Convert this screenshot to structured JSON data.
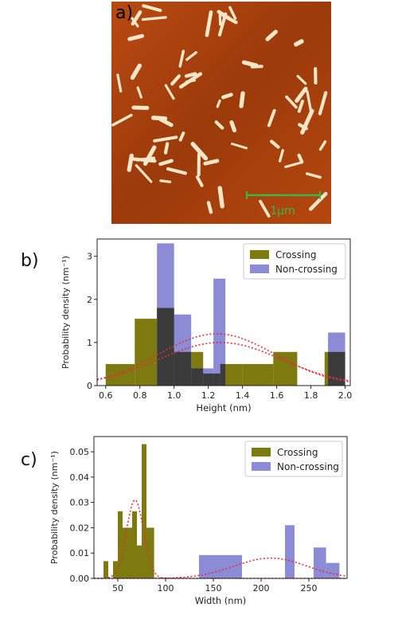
{
  "panels": {
    "a": {
      "label": "a)",
      "scale_bar_label": "1μm"
    },
    "b": {
      "label": "b)"
    },
    "c": {
      "label": "c)"
    }
  },
  "colors": {
    "crossing": "#7d7a10",
    "non_crossing": "#8c8cd6",
    "overlap": "#3b3b3b",
    "fit": "#e0303a",
    "afm_bg": "#a8420e",
    "afm_fiber": "#f5e6c8",
    "scale_bar": "#39b54a"
  },
  "chart_data": [
    {
      "type": "bar",
      "panel": "b",
      "xlabel": "Height (nm)",
      "ylabel": "Probability density (nm⁻¹)",
      "xlim": [
        0.55,
        2.03
      ],
      "ylim": [
        0,
        3.4
      ],
      "xticks": [
        "0.6",
        "0.8",
        "1.0",
        "1.2",
        "1.4",
        "1.6",
        "1.8",
        "2.0"
      ],
      "xtick_values": [
        0.6,
        0.8,
        1.0,
        1.2,
        1.4,
        1.6,
        1.8,
        2.0
      ],
      "yticks": [
        "0",
        "1",
        "2",
        "3"
      ],
      "ytick_values": [
        0,
        1,
        2,
        3
      ],
      "legend_position": "top-right",
      "series": [
        {
          "name": "Crossing",
          "bins": [
            [
              0.6,
              0.77,
              0.5
            ],
            [
              0.77,
              0.9,
              1.55
            ],
            [
              0.9,
              1.0,
              1.8
            ],
            [
              1.0,
              1.1,
              0.78
            ],
            [
              1.1,
              1.17,
              0.78
            ],
            [
              1.17,
              1.27,
              0.28
            ],
            [
              1.27,
              1.4,
              0.5
            ],
            [
              1.4,
              1.58,
              0.5
            ],
            [
              1.58,
              1.72,
              0.78
            ],
            [
              1.72,
              1.88,
              0
            ],
            [
              1.88,
              2.0,
              0.78
            ]
          ]
        },
        {
          "name": "Non-crossing",
          "bins": [
            [
              0.9,
              1.0,
              3.3
            ],
            [
              1.0,
              1.1,
              1.65
            ],
            [
              1.1,
              1.17,
              0.4
            ],
            [
              1.17,
              1.23,
              0.4
            ],
            [
              1.23,
              1.3,
              2.48
            ],
            [
              1.9,
              2.0,
              1.23
            ]
          ]
        }
      ],
      "fits": [
        {
          "series": "Crossing",
          "mean": 1.27,
          "sd": 0.36,
          "peak": 1.0
        },
        {
          "series": "Non-crossing",
          "mean": 1.25,
          "sd": 0.34,
          "peak": 1.2
        }
      ]
    },
    {
      "type": "bar",
      "panel": "c",
      "xlabel": "Width (nm)",
      "ylabel": "Probability density (nm⁻¹)",
      "xlim": [
        25,
        290
      ],
      "ylim": [
        0,
        0.056
      ],
      "xticks": [
        "50",
        "100",
        "150",
        "200",
        "250"
      ],
      "xtick_values": [
        50,
        100,
        150,
        200,
        250
      ],
      "yticks": [
        "0.00",
        "0.01",
        "0.02",
        "0.03",
        "0.04",
        "0.05"
      ],
      "ytick_values": [
        0,
        0.01,
        0.02,
        0.03,
        0.04,
        0.05
      ],
      "legend_position": "top-right",
      "series": [
        {
          "name": "Crossing",
          "bins": [
            [
              35,
              40,
              0.0068
            ],
            [
              40,
              45,
              0.0
            ],
            [
              45,
              50,
              0.0068
            ],
            [
              50,
              55,
              0.0265
            ],
            [
              55,
              60,
              0.02
            ],
            [
              60,
              65,
              0.02
            ],
            [
              65,
              70,
              0.0265
            ],
            [
              70,
              75,
              0.013
            ],
            [
              75,
              80,
              0.053
            ],
            [
              80,
              88,
              0.02
            ]
          ]
        },
        {
          "name": "Non-crossing",
          "bins": [
            [
              135,
              180,
              0.0092
            ],
            [
              225,
              235,
              0.021
            ],
            [
              255,
              268,
              0.0122
            ],
            [
              268,
              282,
              0.0061
            ]
          ]
        }
      ],
      "fits": [
        {
          "series": "Crossing",
          "mean": 68,
          "sd": 9,
          "peak": 0.031
        },
        {
          "series": "Non-crossing",
          "mean": 210,
          "sd": 38,
          "peak": 0.008
        }
      ]
    }
  ]
}
